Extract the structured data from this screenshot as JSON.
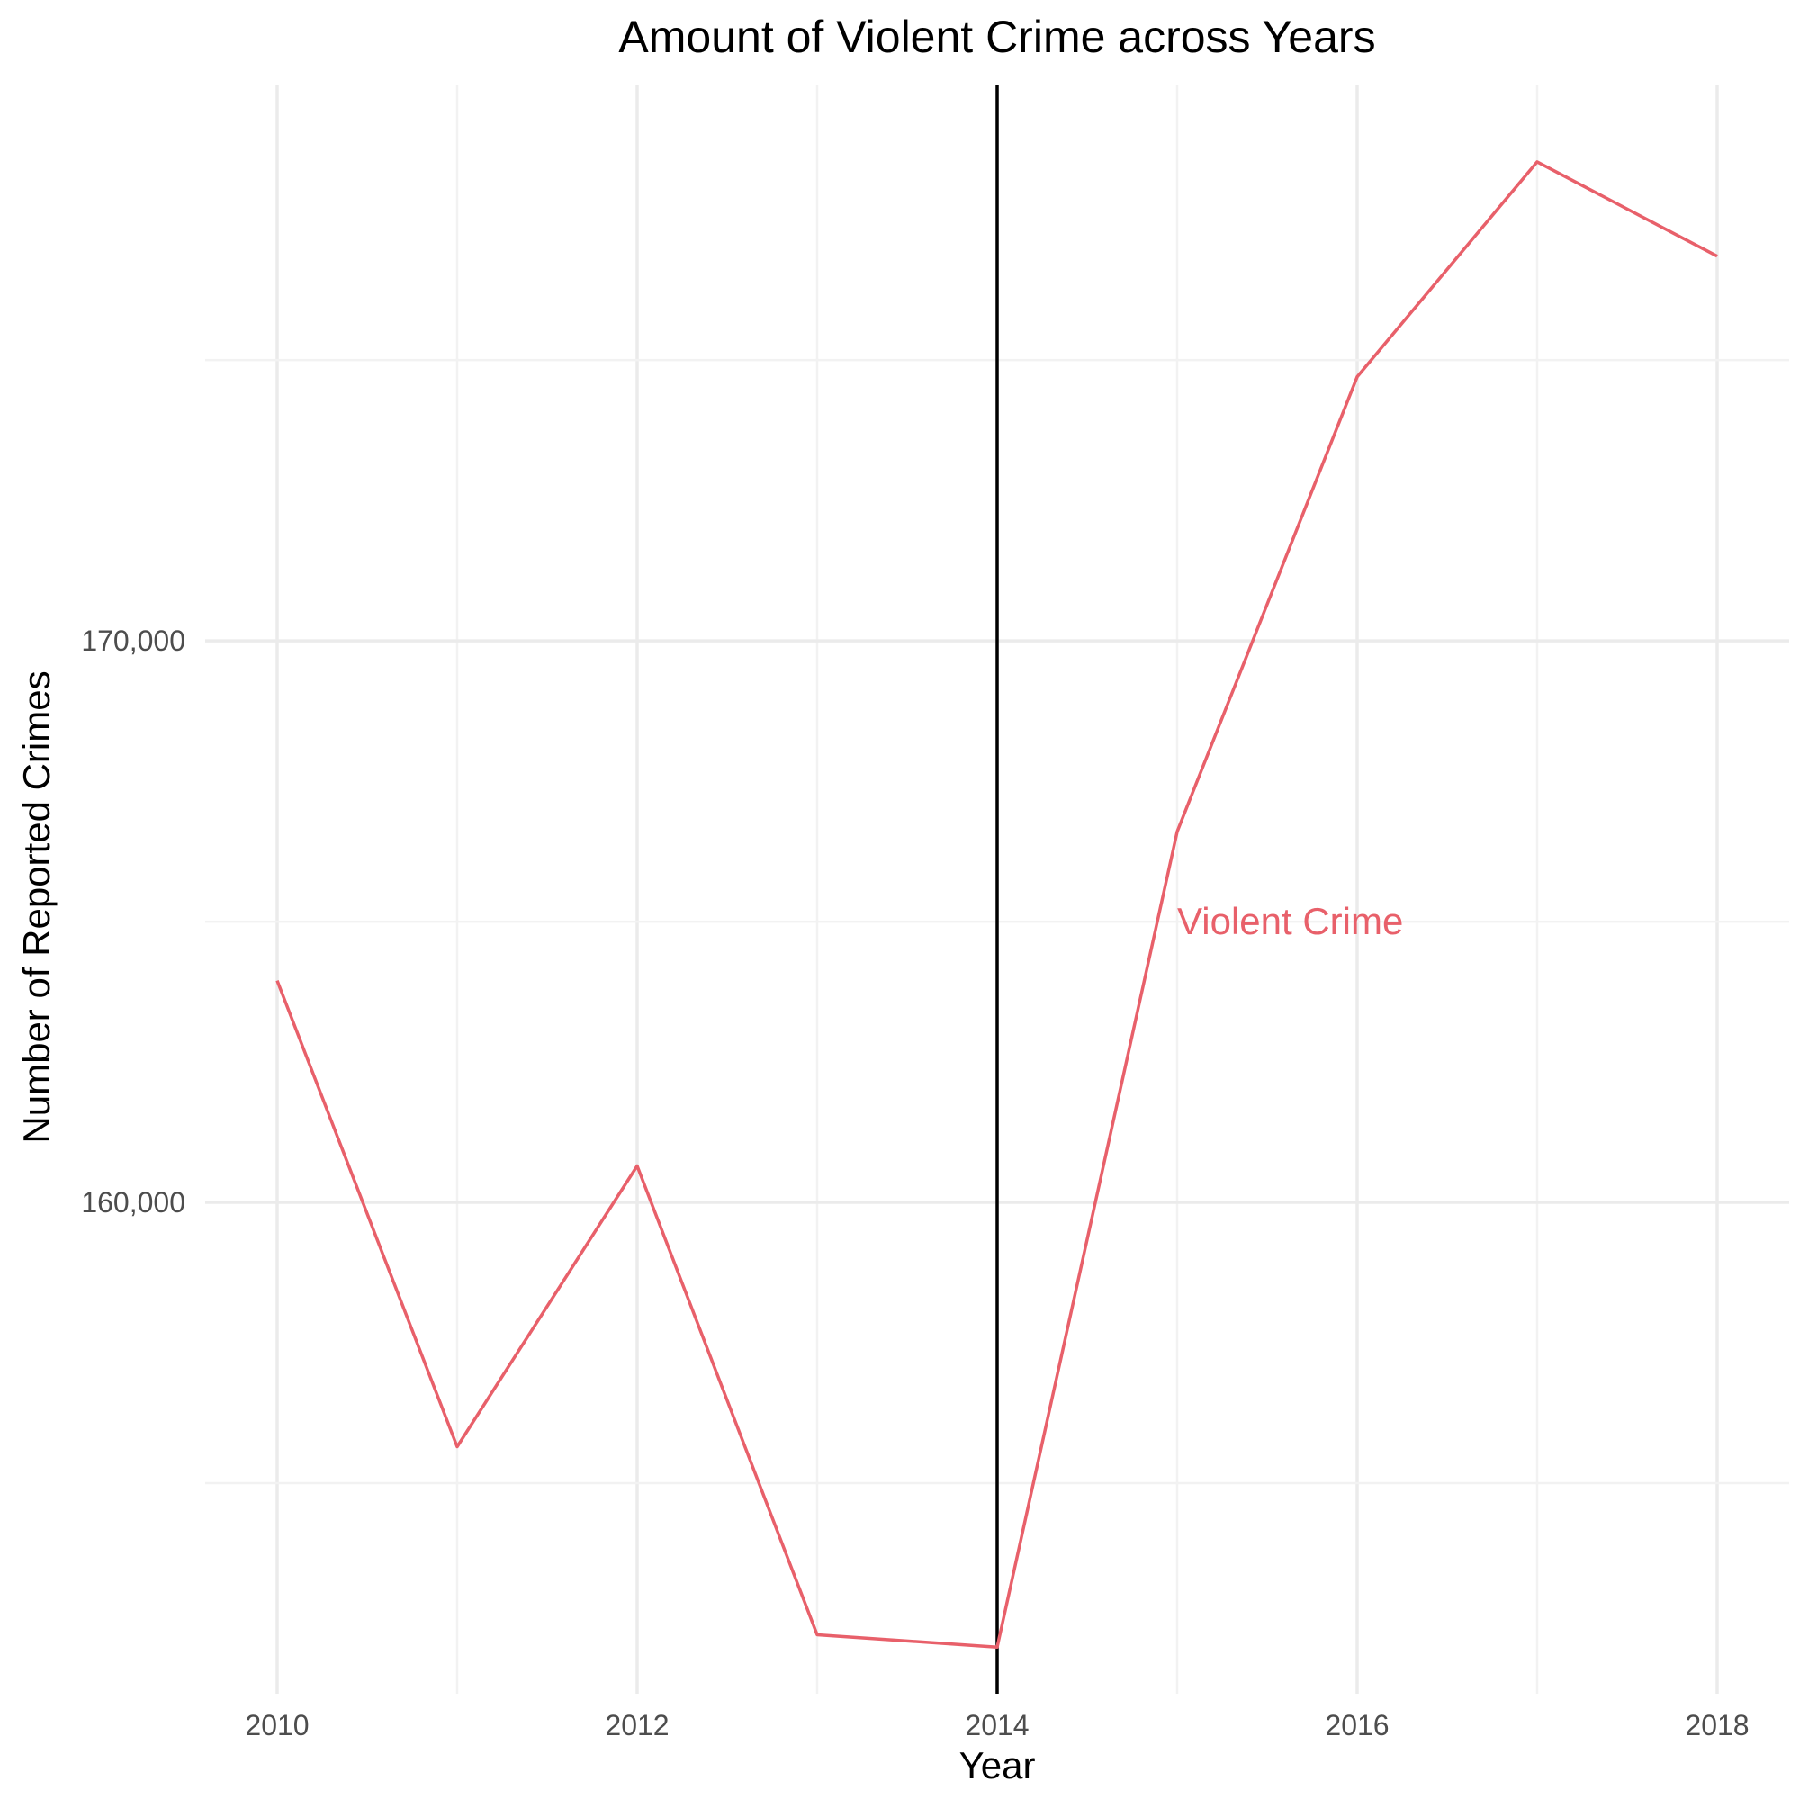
{
  "chart_data": {
    "type": "line",
    "title": "Amount of Violent Crime across Years",
    "xlabel": "Year",
    "ylabel": "Number of Reported Crimes",
    "x": [
      2010,
      2011,
      2012,
      2013,
      2014,
      2015,
      2016,
      2017,
      2018
    ],
    "series": [
      {
        "name": "Violent Crime",
        "color": "#e8606a",
        "values": [
          163950,
          155650,
          160650,
          152300,
          152080,
          166600,
          174700,
          178530,
          176850
        ]
      }
    ],
    "x_ticks": [
      "2010",
      "2012",
      "2014",
      "2016",
      "2018"
    ],
    "y_ticks": [
      "160,000",
      "170,000"
    ],
    "y_tick_values": [
      160000,
      170000
    ],
    "xlim": [
      2009.6,
      2018.4
    ],
    "ylim": [
      151250,
      179890
    ],
    "vline": {
      "x": 2014,
      "color": "#000000"
    },
    "annotation": {
      "text": "Violent Crime",
      "x": 2015,
      "y": 165000,
      "color": "#e8606a"
    },
    "grid": true,
    "legend": "none"
  }
}
